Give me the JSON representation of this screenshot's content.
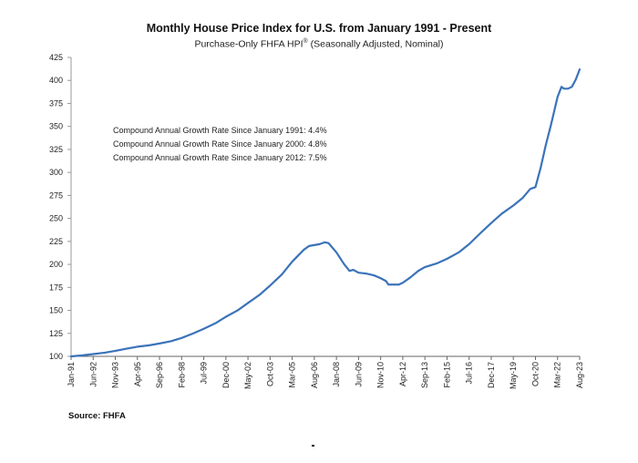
{
  "chart_data": {
    "type": "line",
    "title": "Monthly House Price Index for U.S. from January 1991 - Present",
    "subtitle": "Purchase-Only FHFA HPI",
    "subtitle_sup": "®",
    "subtitle_tail": " (Seasonally Adjusted, Nominal)",
    "xlabel": "",
    "ylabel": "",
    "ylim": [
      100,
      425
    ],
    "yticks": [
      100,
      125,
      150,
      175,
      200,
      225,
      250,
      275,
      300,
      325,
      350,
      375,
      400,
      425
    ],
    "x_start": "1991-01",
    "x_end": "2023-08",
    "xtick_labels": [
      "Jan-91",
      "Jun-92",
      "Nov-93",
      "Apr-95",
      "Sep-96",
      "Feb-98",
      "Jul-99",
      "Dec-00",
      "May-02",
      "Oct-03",
      "Mar-05",
      "Aug-06",
      "Jan-08",
      "Jun-09",
      "Nov-10",
      "Apr-12",
      "Sep-13",
      "Feb-15",
      "Jul-16",
      "Dec-17",
      "May-19",
      "Oct-20",
      "Mar-22",
      "Aug-23"
    ],
    "grid": false,
    "legend": "none",
    "line_color": "#3b73b9",
    "series": [
      {
        "name": "Purchase-Only FHFA HPI",
        "points": [
          [
            "1991-01",
            100
          ],
          [
            "1991-09",
            101
          ],
          [
            "1992-06",
            102.5
          ],
          [
            "1993-03",
            104
          ],
          [
            "1993-11",
            106
          ],
          [
            "1994-08",
            108.5
          ],
          [
            "1995-04",
            110.5
          ],
          [
            "1996-01",
            112
          ],
          [
            "1996-09",
            114
          ],
          [
            "1997-06",
            116.5
          ],
          [
            "1998-02",
            120
          ],
          [
            "1998-11",
            125
          ],
          [
            "1999-07",
            130
          ],
          [
            "2000-04",
            136
          ],
          [
            "2000-12",
            143
          ],
          [
            "2001-09",
            150
          ],
          [
            "2002-05",
            158
          ],
          [
            "2003-02",
            167
          ],
          [
            "2003-10",
            177
          ],
          [
            "2004-07",
            189
          ],
          [
            "2005-03",
            203
          ],
          [
            "2005-12",
            216
          ],
          [
            "2006-04",
            220
          ],
          [
            "2006-08",
            221
          ],
          [
            "2006-12",
            222
          ],
          [
            "2007-04",
            224
          ],
          [
            "2007-07",
            223
          ],
          [
            "2008-01",
            213
          ],
          [
            "2008-07",
            200
          ],
          [
            "2008-11",
            193
          ],
          [
            "2009-02",
            194
          ],
          [
            "2009-06",
            191
          ],
          [
            "2009-12",
            190
          ],
          [
            "2010-06",
            188
          ],
          [
            "2010-11",
            185
          ],
          [
            "2011-03",
            182
          ],
          [
            "2011-05",
            178
          ],
          [
            "2011-09",
            178
          ],
          [
            "2012-01",
            178
          ],
          [
            "2012-04",
            180
          ],
          [
            "2012-10",
            186
          ],
          [
            "2013-04",
            193
          ],
          [
            "2013-09",
            197
          ],
          [
            "2014-06",
            201
          ],
          [
            "2015-02",
            206
          ],
          [
            "2015-11",
            213
          ],
          [
            "2016-07",
            222
          ],
          [
            "2017-03",
            233
          ],
          [
            "2017-12",
            245
          ],
          [
            "2018-08",
            255
          ],
          [
            "2019-05",
            264
          ],
          [
            "2019-12",
            272
          ],
          [
            "2020-06",
            282
          ],
          [
            "2020-10",
            284
          ],
          [
            "2021-02",
            305
          ],
          [
            "2021-06",
            330
          ],
          [
            "2021-10",
            352
          ],
          [
            "2022-03",
            382
          ],
          [
            "2022-06",
            393
          ],
          [
            "2022-08",
            391
          ],
          [
            "2022-11",
            391
          ],
          [
            "2023-02",
            393
          ],
          [
            "2023-05",
            401
          ],
          [
            "2023-08",
            412
          ]
        ]
      }
    ],
    "annotations": [
      "Compound Annual Growth Rate Since January 1991:  4.4%",
      "Compound Annual Growth Rate Since January 2000:  4.8%",
      "Compound Annual Growth Rate Since January 2012:  7.5%"
    ]
  },
  "footer": {
    "source": "Source: FHFA"
  }
}
